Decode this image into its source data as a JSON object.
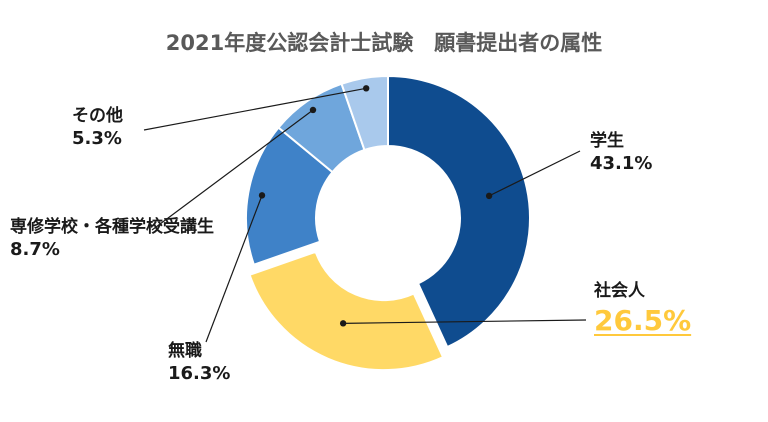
{
  "chart_data": {
    "type": "pie",
    "variant": "donut",
    "title": "2021年度公認会計士試験　願書提出者の属性",
    "unit": "%",
    "slices": [
      {
        "label": "学生",
        "value": 43.1,
        "value_label": "43.1%",
        "color": "#0f4c8f"
      },
      {
        "label": "社会人",
        "value": 26.5,
        "value_label": "26.5%",
        "color": "#ffd966",
        "highlight": true,
        "label_color": "#ffc93c"
      },
      {
        "label": "無職",
        "value": 16.3,
        "value_label": "16.3%",
        "color": "#3f82c8"
      },
      {
        "label": "専修学校・各種学校受講生",
        "value": 8.7,
        "value_label": "8.7%",
        "color": "#6fa6dc"
      },
      {
        "label": "その他",
        "value": 5.3,
        "value_label": "5.3%",
        "color": "#a9c9ec"
      }
    ]
  }
}
